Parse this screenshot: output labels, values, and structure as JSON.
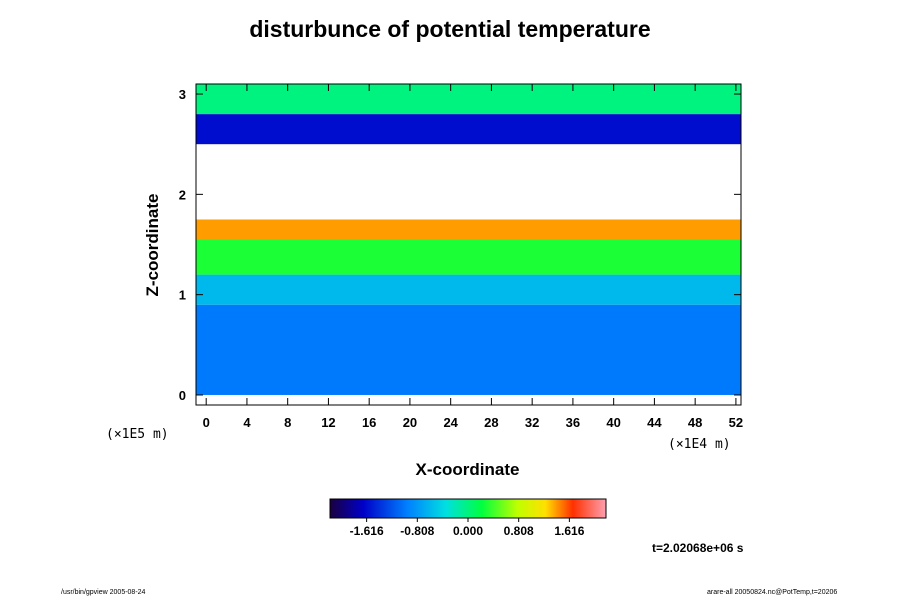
{
  "chart_data": {
    "type": "heatmap",
    "title": "disturbunce of potential temperature",
    "xlabel": "X-coordinate",
    "ylabel": "Z-coordinate",
    "x_scale_note": "(×1E4 m)",
    "y_scale_note": "(×1E5 m)",
    "x_ticks": [
      "0",
      "4",
      "8",
      "12",
      "16",
      "20",
      "24",
      "28",
      "32",
      "36",
      "40",
      "44",
      "48",
      "52"
    ],
    "y_ticks": [
      "0",
      "1",
      "2",
      "3"
    ],
    "xlim": [
      -1,
      52.5
    ],
    "ylim": [
      -0.1,
      3.1
    ],
    "colorbar": {
      "ticks": [
        "-1.616",
        "-0.808",
        "0.000",
        "0.808",
        "1.616"
      ],
      "tick_values": [
        -1.616,
        -0.808,
        0.0,
        0.808,
        1.616
      ],
      "range": [
        -2.2,
        2.2
      ],
      "colormap": "rainbow (dark purple to blue to cyan to green to yellow to red to pink)"
    },
    "z_bands": [
      {
        "z_range": [
          0.0,
          0.9
        ],
        "value": -1.0
      },
      {
        "z_range": [
          0.9,
          1.2
        ],
        "value": -0.6
      },
      {
        "z_range": [
          1.2,
          1.55
        ],
        "value": 0.3
      },
      {
        "z_range": [
          1.55,
          1.75
        ],
        "value": 1.4
      },
      {
        "z_range": [
          1.75,
          2.5
        ],
        "value": null
      },
      {
        "z_range": [
          2.5,
          2.8
        ],
        "value": -1.6
      },
      {
        "z_range": [
          2.8,
          3.1
        ],
        "value": 0.0
      }
    ],
    "annotations": [
      "t=2.02068e+06 s"
    ]
  },
  "footer": {
    "left": "/usr/bin/gpview 2005-08-24",
    "right": "arare-all 20050824.nc@PotTemp,t=20206"
  },
  "colors": {
    "background": "#ffffff",
    "axis": "#000000"
  }
}
